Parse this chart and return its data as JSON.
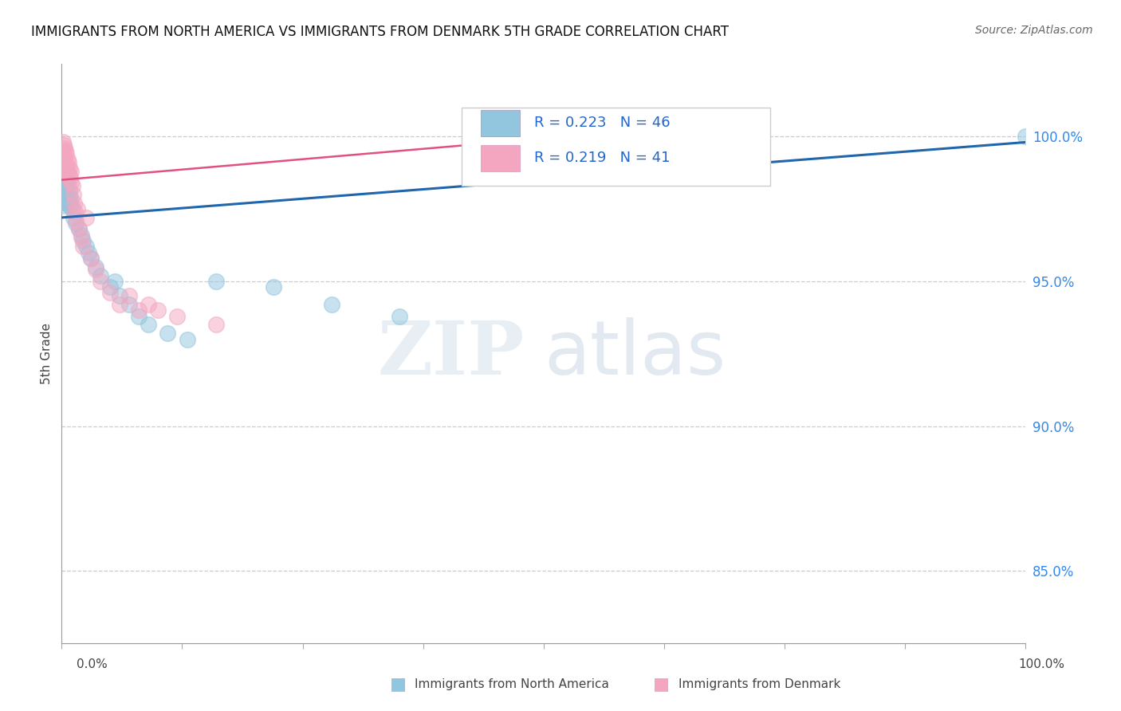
{
  "title": "IMMIGRANTS FROM NORTH AMERICA VS IMMIGRANTS FROM DENMARK 5TH GRADE CORRELATION CHART",
  "source": "Source: ZipAtlas.com",
  "ylabel": "5th Grade",
  "legend_label_blue": "Immigrants from North America",
  "legend_label_pink": "Immigrants from Denmark",
  "R_blue": 0.223,
  "N_blue": 46,
  "R_pink": 0.219,
  "N_pink": 41,
  "color_blue": "#92c5de",
  "color_pink": "#f4a6c0",
  "trendline_blue": "#2166ac",
  "trendline_pink": "#d6604d",
  "ylabel_right_ticks": [
    "100.0%",
    "95.0%",
    "90.0%",
    "85.0%"
  ],
  "ylabel_right_vals": [
    1.0,
    0.95,
    0.9,
    0.85
  ],
  "xlim": [
    0.0,
    1.0
  ],
  "ylim": [
    0.825,
    1.025
  ],
  "scatter_blue_x": [
    0.001,
    0.001,
    0.002,
    0.002,
    0.002,
    0.003,
    0.003,
    0.003,
    0.004,
    0.004,
    0.004,
    0.005,
    0.005,
    0.005,
    0.006,
    0.006,
    0.007,
    0.007,
    0.008,
    0.008,
    0.009,
    0.01,
    0.011,
    0.012,
    0.015,
    0.018,
    0.02,
    0.022,
    0.025,
    0.028,
    0.03,
    0.035,
    0.04,
    0.05,
    0.055,
    0.06,
    0.07,
    0.08,
    0.09,
    0.11,
    0.13,
    0.16,
    0.22,
    0.28,
    0.35,
    1.0
  ],
  "scatter_blue_y": [
    0.99,
    0.985,
    0.988,
    0.983,
    0.978,
    0.986,
    0.981,
    0.976,
    0.989,
    0.984,
    0.979,
    0.987,
    0.982,
    0.977,
    0.985,
    0.98,
    0.983,
    0.978,
    0.981,
    0.976,
    0.979,
    0.977,
    0.975,
    0.972,
    0.97,
    0.968,
    0.966,
    0.964,
    0.962,
    0.96,
    0.958,
    0.955,
    0.952,
    0.948,
    0.95,
    0.945,
    0.942,
    0.938,
    0.935,
    0.932,
    0.93,
    0.95,
    0.948,
    0.942,
    0.938,
    1.0
  ],
  "scatter_pink_x": [
    0.001,
    0.001,
    0.002,
    0.002,
    0.003,
    0.003,
    0.003,
    0.004,
    0.004,
    0.004,
    0.005,
    0.005,
    0.006,
    0.006,
    0.007,
    0.007,
    0.008,
    0.009,
    0.01,
    0.01,
    0.011,
    0.012,
    0.013,
    0.014,
    0.015,
    0.016,
    0.018,
    0.02,
    0.022,
    0.025,
    0.03,
    0.035,
    0.04,
    0.05,
    0.06,
    0.07,
    0.08,
    0.09,
    0.1,
    0.12,
    0.16
  ],
  "scatter_pink_y": [
    0.998,
    0.995,
    0.997,
    0.993,
    0.996,
    0.992,
    0.988,
    0.995,
    0.991,
    0.987,
    0.994,
    0.99,
    0.992,
    0.988,
    0.991,
    0.987,
    0.989,
    0.986,
    0.984,
    0.988,
    0.983,
    0.98,
    0.977,
    0.974,
    0.971,
    0.975,
    0.968,
    0.965,
    0.962,
    0.972,
    0.958,
    0.954,
    0.95,
    0.946,
    0.942,
    0.945,
    0.94,
    0.942,
    0.94,
    0.938,
    0.935
  ],
  "trendline_blue_x0": 0.0,
  "trendline_blue_y0": 0.972,
  "trendline_blue_x1": 1.0,
  "trendline_blue_y1": 0.998,
  "trendline_pink_x0": 0.0,
  "trendline_pink_y0": 0.985,
  "trendline_pink_x1": 0.42,
  "trendline_pink_y1": 0.997
}
